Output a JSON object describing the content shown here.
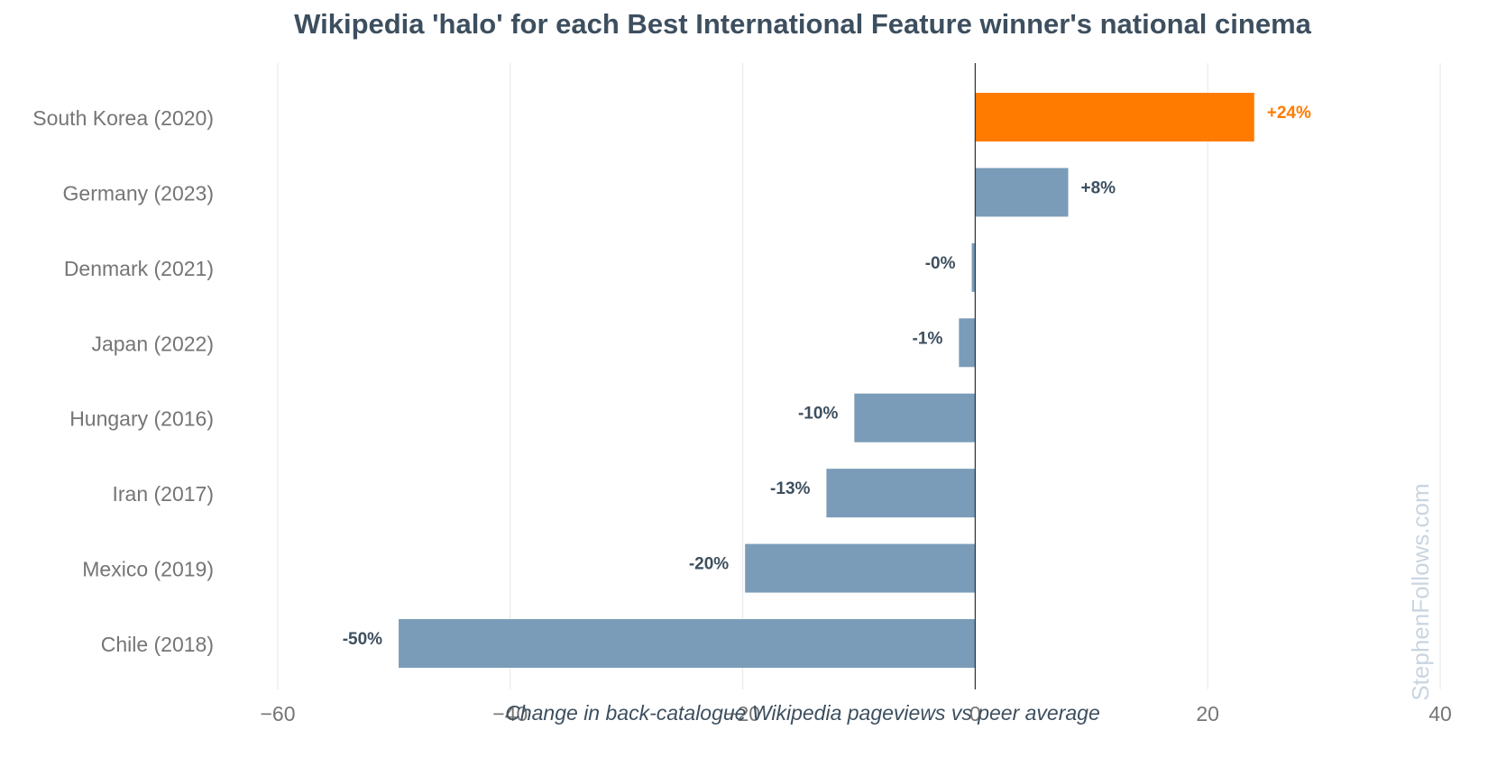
{
  "chart_data": {
    "type": "bar",
    "orientation": "horizontal",
    "title": "Wikipedia 'halo' for each Best International Feature winner's national cinema",
    "xlabel": "Change in back-catalogue Wikipedia pageviews vs peer average",
    "ylabel": "",
    "categories": [
      "South Korea (2020)",
      "Germany (2023)",
      "Denmark (2021)",
      "Japan (2022)",
      "Hungary (2016)",
      "Iran (2017)",
      "Mexico (2019)",
      "Chile (2018)"
    ],
    "values": [
      24,
      8,
      -0.3,
      -1.4,
      -10.4,
      -12.8,
      -19.8,
      -49.6
    ],
    "value_labels": [
      "+24%",
      "+8%",
      "-0%",
      "-1%",
      "-10%",
      "-13%",
      "-20%",
      "-50%"
    ],
    "highlight_index": 0,
    "xlim": [
      -60,
      40
    ],
    "xticks": [
      -60,
      -40,
      -20,
      0,
      20,
      40
    ],
    "xtick_labels": [
      "−60",
      "−40",
      "−20",
      "0",
      "20",
      "40"
    ],
    "grid": "vertical",
    "legend": "none",
    "watermark": "StephenFollows.com",
    "colors": {
      "bar": "#7a9cb8",
      "highlight": "#ff7b00",
      "label_default": "#3d4f5f",
      "label_highlight": "#ff7b00",
      "grid": "#e6e6e6",
      "zero_line": "#2f3b44",
      "watermark": "#c9d5e0"
    }
  }
}
